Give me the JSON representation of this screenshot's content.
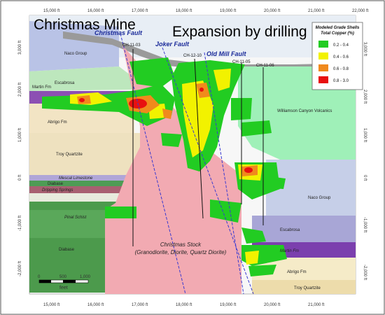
{
  "title": "Christmas Mine",
  "subtitle": "Expansion by drilling",
  "x_axis_ticks": [
    "15,000 ft",
    "16,000 ft",
    "17,000 ft",
    "18,000 ft",
    "19,000 ft",
    "20,000 ft",
    "21,000 ft",
    "22,000 ft"
  ],
  "y_axis_ticks": [
    "3,000 ft",
    "2,000 ft",
    "1,000 ft",
    "0 ft",
    "-1,000 ft",
    "-2,000 ft"
  ],
  "faults": [
    "Christmas Fault",
    "Joker Fault",
    "Old Mill Fault"
  ],
  "drill_holes": [
    "CH-11-03",
    "CH-12-10",
    "CH-11-05",
    "CH-11-06"
  ],
  "formations_left": [
    "Naco Group",
    "Martin Fm",
    "Escabrosa",
    "Abrigo Fm",
    "Troy Quartzite",
    "Mescal Limestone",
    "Diabase",
    "Dripping Springs",
    "Pinal Schist",
    "Diabase"
  ],
  "formations_right": [
    "Williamson Canyon Volcanics",
    "Naco Group",
    "Escabrosa",
    "Martin Fm",
    "Abrigo Fm",
    "Troy Quartzite"
  ],
  "stock_label": [
    "Christmas Stock",
    "(Granodiorite, Diorite, Quartz Diorite)"
  ],
  "legend": {
    "title": "Modeled Grade Shells",
    "subtitle": "Total Copper (%)",
    "items": [
      {
        "label": "0.2 - 0.4",
        "color": "#22cc22"
      },
      {
        "label": "0.4 - 0.6",
        "color": "#f2f200"
      },
      {
        "label": "0.6 - 0.8",
        "color": "#f08a1c"
      },
      {
        "label": "0.8 - 3.0",
        "color": "#e81010"
      }
    ]
  },
  "scale_bar": {
    "ticks": [
      "0",
      "500",
      "1,000"
    ],
    "unit": "feet"
  }
}
